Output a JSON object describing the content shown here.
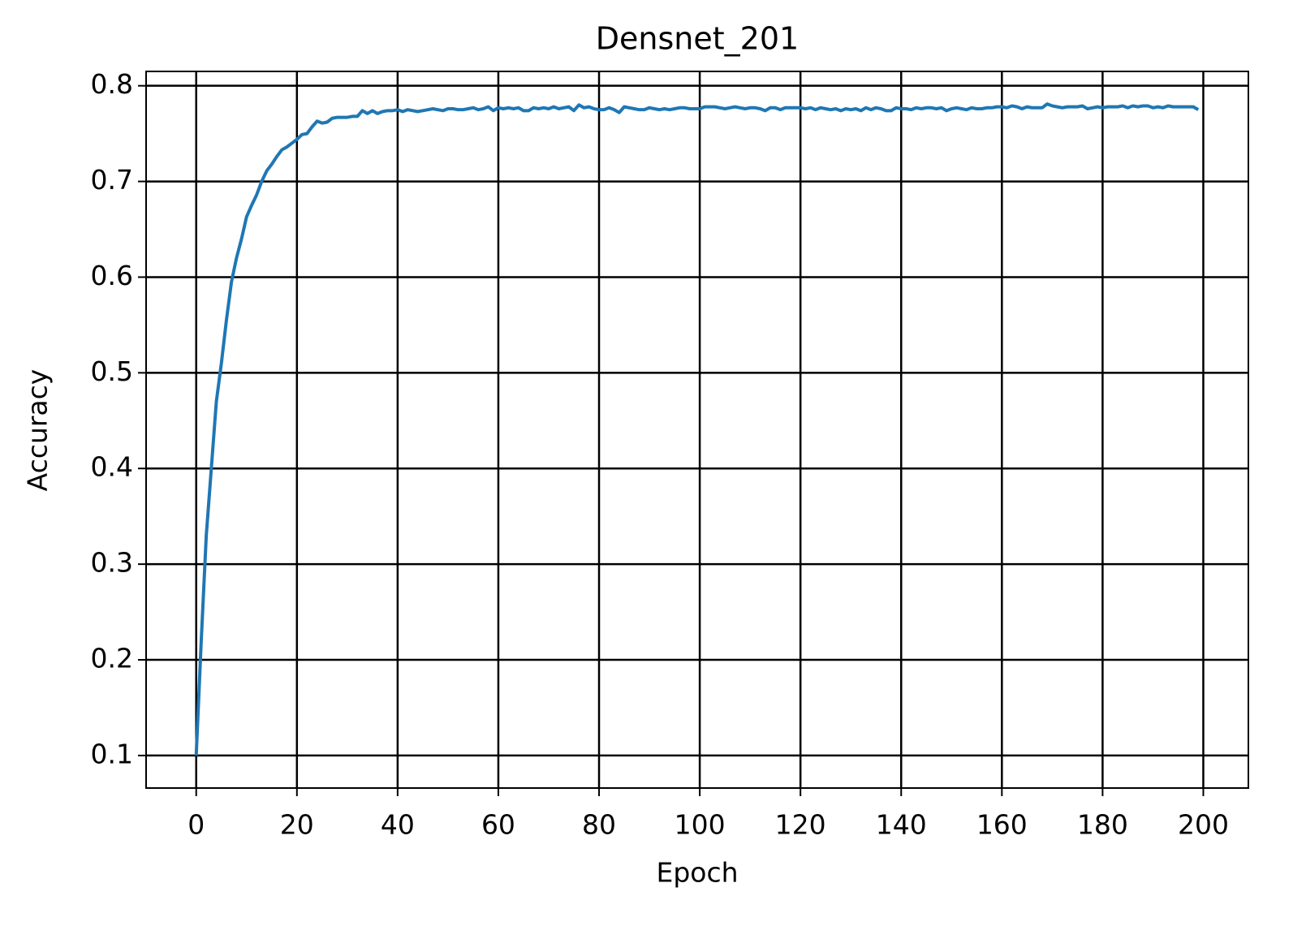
{
  "chart_data": {
    "type": "line",
    "title": "Densnet_201",
    "xlabel": "Epoch",
    "ylabel": "Accuracy",
    "x": [
      0,
      1,
      2,
      3,
      4,
      5,
      6,
      7,
      8,
      9,
      10,
      11,
      12,
      13,
      14,
      15,
      16,
      17,
      18,
      19,
      20,
      21,
      22,
      23,
      24,
      25,
      26,
      27,
      28,
      29,
      30,
      31,
      32,
      33,
      34,
      35,
      36,
      37,
      38,
      39,
      40,
      41,
      42,
      43,
      44,
      45,
      46,
      47,
      48,
      49,
      50,
      51,
      52,
      53,
      54,
      55,
      56,
      57,
      58,
      59,
      60,
      61,
      62,
      63,
      64,
      65,
      66,
      67,
      68,
      69,
      70,
      71,
      72,
      73,
      74,
      75,
      76,
      77,
      78,
      79,
      80,
      81,
      82,
      83,
      84,
      85,
      86,
      87,
      88,
      89,
      90,
      91,
      92,
      93,
      94,
      95,
      96,
      97,
      98,
      99,
      100,
      101,
      102,
      103,
      104,
      105,
      106,
      107,
      108,
      109,
      110,
      111,
      112,
      113,
      114,
      115,
      116,
      117,
      118,
      119,
      120,
      121,
      122,
      123,
      124,
      125,
      126,
      127,
      128,
      129,
      130,
      131,
      132,
      133,
      134,
      135,
      136,
      137,
      138,
      139,
      140,
      141,
      142,
      143,
      144,
      145,
      146,
      147,
      148,
      149,
      150,
      151,
      152,
      153,
      154,
      155,
      156,
      157,
      158,
      159,
      160,
      161,
      162,
      163,
      164,
      165,
      166,
      167,
      168,
      169,
      170,
      171,
      172,
      173,
      174,
      175,
      176,
      177,
      178,
      179,
      180,
      181,
      182,
      183,
      184,
      185,
      186,
      187,
      188,
      189,
      190,
      191,
      192,
      193,
      194,
      195,
      196,
      197,
      198,
      199
    ],
    "series": [
      {
        "name": "Accuracy",
        "color": "#1f77b4",
        "values": [
          0.1,
          0.22,
          0.33,
          0.4,
          0.47,
          0.51,
          0.555,
          0.595,
          0.62,
          0.64,
          0.663,
          0.675,
          0.686,
          0.7,
          0.711,
          0.718,
          0.726,
          0.733,
          0.736,
          0.74,
          0.744,
          0.749,
          0.75,
          0.757,
          0.763,
          0.761,
          0.762,
          0.766,
          0.767,
          0.767,
          0.767,
          0.768,
          0.768,
          0.774,
          0.771,
          0.774,
          0.771,
          0.773,
          0.774,
          0.774,
          0.775,
          0.773,
          0.775,
          0.774,
          0.773,
          0.774,
          0.775,
          0.776,
          0.775,
          0.774,
          0.776,
          0.776,
          0.775,
          0.775,
          0.776,
          0.777,
          0.775,
          0.776,
          0.778,
          0.774,
          0.777,
          0.776,
          0.777,
          0.776,
          0.777,
          0.774,
          0.774,
          0.777,
          0.776,
          0.777,
          0.776,
          0.778,
          0.776,
          0.777,
          0.778,
          0.774,
          0.78,
          0.777,
          0.778,
          0.776,
          0.775,
          0.775,
          0.777,
          0.775,
          0.772,
          0.778,
          0.777,
          0.776,
          0.775,
          0.775,
          0.777,
          0.776,
          0.775,
          0.776,
          0.775,
          0.776,
          0.777,
          0.777,
          0.776,
          0.776,
          0.776,
          0.778,
          0.778,
          0.778,
          0.777,
          0.776,
          0.777,
          0.778,
          0.777,
          0.776,
          0.777,
          0.777,
          0.776,
          0.774,
          0.777,
          0.777,
          0.775,
          0.777,
          0.777,
          0.777,
          0.777,
          0.776,
          0.777,
          0.775,
          0.777,
          0.776,
          0.775,
          0.776,
          0.774,
          0.776,
          0.775,
          0.776,
          0.774,
          0.777,
          0.775,
          0.777,
          0.776,
          0.774,
          0.774,
          0.777,
          0.776,
          0.776,
          0.775,
          0.777,
          0.776,
          0.777,
          0.777,
          0.776,
          0.777,
          0.774,
          0.776,
          0.777,
          0.776,
          0.775,
          0.777,
          0.776,
          0.776,
          0.777,
          0.777,
          0.778,
          0.778,
          0.777,
          0.779,
          0.778,
          0.776,
          0.778,
          0.777,
          0.777,
          0.777,
          0.781,
          0.779,
          0.778,
          0.777,
          0.778,
          0.778,
          0.778,
          0.779,
          0.776,
          0.777,
          0.778,
          0.777,
          0.778,
          0.778,
          0.778,
          0.779,
          0.777,
          0.779,
          0.778,
          0.779,
          0.779,
          0.777,
          0.778,
          0.777,
          0.779,
          0.778,
          0.778,
          0.778,
          0.778,
          0.778,
          0.775
        ]
      }
    ],
    "xlim": [
      -9.95,
      208.95
    ],
    "ylim": [
      0.066,
      0.815
    ],
    "xticks": [
      0,
      20,
      40,
      60,
      80,
      100,
      120,
      140,
      160,
      180,
      200
    ],
    "yticks": [
      0.1,
      0.2,
      0.3,
      0.4,
      0.5,
      0.6,
      0.7,
      0.8
    ],
    "grid": true
  }
}
